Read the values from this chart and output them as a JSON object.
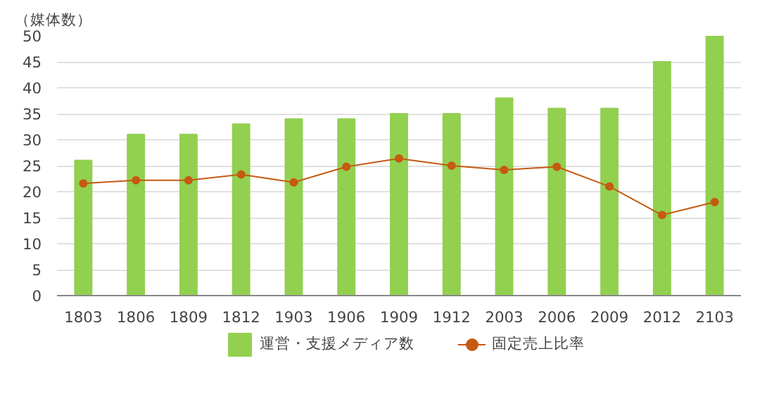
{
  "chart_data": {
    "type": "bar",
    "ylabel": "（媒体数）",
    "categories": [
      "1803",
      "1806",
      "1809",
      "1812",
      "1903",
      "1906",
      "1909",
      "1912",
      "2003",
      "2006",
      "2009",
      "2012",
      "2103"
    ],
    "series": [
      {
        "name": "運営・支援メディア数",
        "type": "bar",
        "color": "#92d050",
        "values": [
          26,
          31,
          31,
          33,
          34,
          34,
          35,
          35,
          38,
          36,
          36,
          45,
          50
        ]
      },
      {
        "name": "固定売上比率",
        "type": "line",
        "color": "#c55a11",
        "marker": "circle",
        "values": [
          21.6,
          22.2,
          22.2,
          23.3,
          21.8,
          24.8,
          26.4,
          25,
          24.2,
          24.8,
          21,
          15.5,
          18
        ]
      }
    ],
    "ylim": [
      0,
      50
    ],
    "yticks": [
      0,
      5,
      10,
      15,
      20,
      25,
      30,
      35,
      40,
      45,
      50
    ],
    "grid": "y",
    "legend": "bottom"
  }
}
